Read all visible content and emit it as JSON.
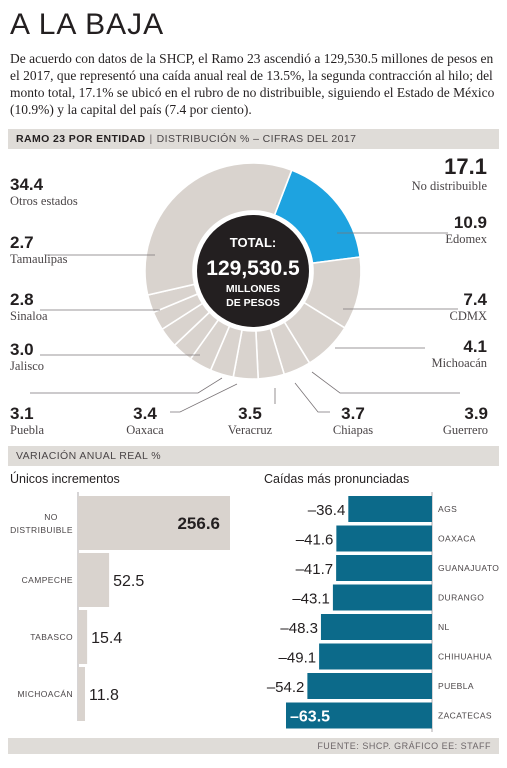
{
  "title": "A LA BAJA",
  "intro": "De acuerdo con datos de la SHCP, el Ramo 23 ascendió a 129,530.5 millones de pesos en el 2017, que representó una caída anual real de 13.5%, la segunda contracción al hilo; del monto total, 17.1% se ubicó en el rubro de no distribuible, siguiendo el Estado de México (10.9%) y la capital del país (7.4 por ciento).",
  "band1": {
    "bold": "RAMO 23 POR ENTIDAD",
    "sep": "|",
    "rest": "DISTRIBUCIÓN % – CIFRAS DEL 2017"
  },
  "band2": {
    "text": "VARIACIÓN ANUAL REAL %"
  },
  "source": "FUENTE: SHCP.  GRÁFICO EE: STAFF",
  "colors": {
    "highlight": "#1ea3e0",
    "donut": "#d9d3ce",
    "center": "#231f20",
    "positive_bar": "#d9d3ce",
    "negative_bar": "#0c6a8a"
  },
  "chart_data": [
    {
      "type": "pie",
      "title": "RAMO 23 POR ENTIDAD",
      "center": {
        "line1": "TOTAL:",
        "line2": "129,530.5",
        "line3": "MILLONES",
        "line4": "DE PESOS"
      },
      "slices": [
        {
          "label": "No distribuible",
          "value": 17.1,
          "display": "17.1"
        },
        {
          "label": "Edomex",
          "value": 10.9,
          "display": "10.9"
        },
        {
          "label": "CDMX",
          "value": 7.4,
          "display": "7.4"
        },
        {
          "label": "Michoacán",
          "value": 4.1,
          "display": "4.1"
        },
        {
          "label": "Guerrero",
          "value": 3.9,
          "display": "3.9"
        },
        {
          "label": "Chiapas",
          "value": 3.7,
          "display": "3.7"
        },
        {
          "label": "Veracruz",
          "value": 3.5,
          "display": "3.5"
        },
        {
          "label": "Oaxaca",
          "value": 3.4,
          "display": "3.4"
        },
        {
          "label": "Puebla",
          "value": 3.1,
          "display": "3.1"
        },
        {
          "label": "Jalisco",
          "value": 3.0,
          "display": "3.0"
        },
        {
          "label": "Sinaloa",
          "value": 2.8,
          "display": "2.8"
        },
        {
          "label": "Tamaulipas",
          "value": 2.7,
          "display": "2.7"
        },
        {
          "label": "Otros estados",
          "value": 34.4,
          "display": "34.4"
        }
      ]
    },
    {
      "type": "bar",
      "title": "Únicos incrementos",
      "categories": [
        "NO DISTRIBUIBLE",
        "CAMPECHE",
        "TABASCO",
        "MICHOACÁN"
      ],
      "values": [
        256.6,
        52.5,
        15.4,
        11.8
      ],
      "labels": [
        "256.6",
        "52.5",
        "15.4",
        "11.8"
      ]
    },
    {
      "type": "bar",
      "title": "Caídas más pronunciadas",
      "categories": [
        "AGS",
        "OAXACA",
        "GUANAJUATO",
        "DURANGO",
        "NL",
        "CHIHUAHUA",
        "PUEBLA",
        "ZACATECAS"
      ],
      "values": [
        -36.4,
        -41.6,
        -41.7,
        -43.1,
        -48.3,
        -49.1,
        -54.2,
        -63.5
      ],
      "labels": [
        "–36.4",
        "–41.6",
        "–41.7",
        "–43.1",
        "–48.3",
        "–49.1",
        "–54.2",
        "–63.5"
      ]
    }
  ]
}
